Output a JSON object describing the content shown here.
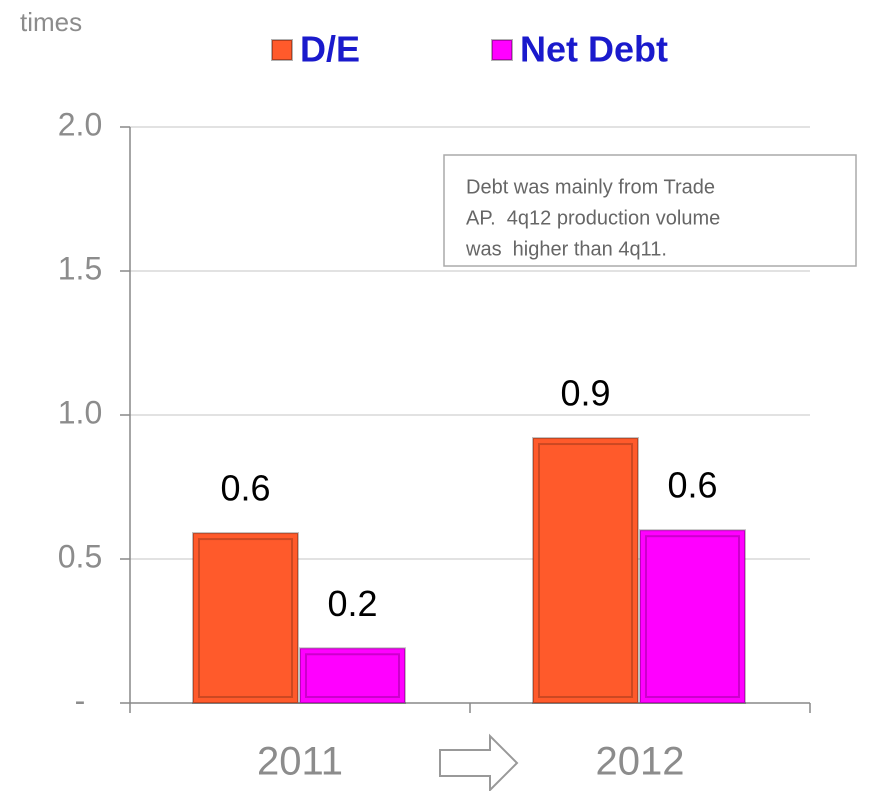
{
  "chart_data": {
    "type": "bar",
    "y_axis_label": "times",
    "categories": [
      "2011",
      "2012"
    ],
    "series": [
      {
        "name": "D/E",
        "color": "#ff5a2b",
        "values": [
          0.59,
          0.92
        ],
        "value_labels": [
          "0.6",
          "0.9"
        ]
      },
      {
        "name": "Net Debt",
        "color": "#ff00ff",
        "values": [
          0.19,
          0.6
        ],
        "value_labels": [
          "0.2",
          "0.6"
        ]
      }
    ],
    "ylim": [
      0,
      2
    ],
    "yticks": [
      {
        "value": 0,
        "label": "-"
      },
      0.5,
      {
        "value": 1,
        "label": "1.0"
      },
      1.5,
      {
        "value": 2,
        "label": "2.0"
      }
    ],
    "grid": true,
    "legend": "top",
    "annotation": [
      "Debt was mainly from Trade",
      "AP.  4q12 production volume",
      "was  higher than 4q11."
    ]
  }
}
